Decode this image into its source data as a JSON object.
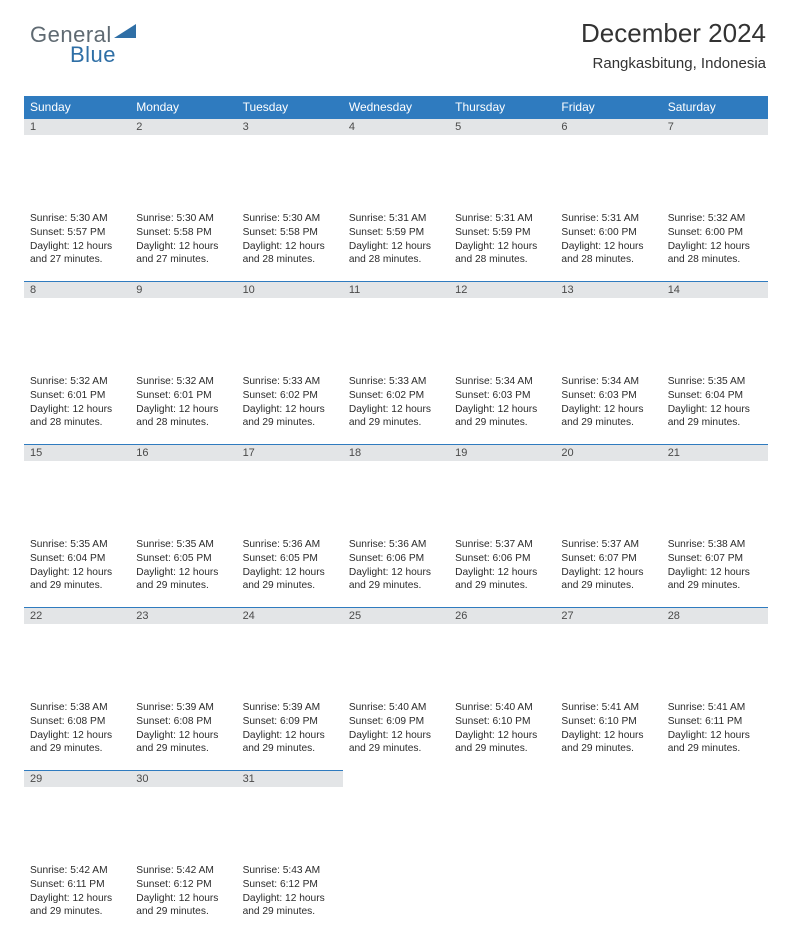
{
  "logo": {
    "text1": "General",
    "text2": "Blue"
  },
  "title": "December 2024",
  "location": "Rangkasbitung, Indonesia",
  "colors": {
    "header_bg": "#2f7bbf",
    "header_text": "#ffffff",
    "daynum_bg": "#e3e5e7",
    "row_border": "#2f7bbf",
    "logo_gray": "#5f6a72",
    "logo_blue": "#2f6fa6"
  },
  "weekdays": [
    "Sunday",
    "Monday",
    "Tuesday",
    "Wednesday",
    "Thursday",
    "Friday",
    "Saturday"
  ],
  "weeks": [
    [
      {
        "n": "1",
        "sr": "Sunrise: 5:30 AM",
        "ss": "Sunset: 5:57 PM",
        "d1": "Daylight: 12 hours",
        "d2": "and 27 minutes."
      },
      {
        "n": "2",
        "sr": "Sunrise: 5:30 AM",
        "ss": "Sunset: 5:58 PM",
        "d1": "Daylight: 12 hours",
        "d2": "and 27 minutes."
      },
      {
        "n": "3",
        "sr": "Sunrise: 5:30 AM",
        "ss": "Sunset: 5:58 PM",
        "d1": "Daylight: 12 hours",
        "d2": "and 28 minutes."
      },
      {
        "n": "4",
        "sr": "Sunrise: 5:31 AM",
        "ss": "Sunset: 5:59 PM",
        "d1": "Daylight: 12 hours",
        "d2": "and 28 minutes."
      },
      {
        "n": "5",
        "sr": "Sunrise: 5:31 AM",
        "ss": "Sunset: 5:59 PM",
        "d1": "Daylight: 12 hours",
        "d2": "and 28 minutes."
      },
      {
        "n": "6",
        "sr": "Sunrise: 5:31 AM",
        "ss": "Sunset: 6:00 PM",
        "d1": "Daylight: 12 hours",
        "d2": "and 28 minutes."
      },
      {
        "n": "7",
        "sr": "Sunrise: 5:32 AM",
        "ss": "Sunset: 6:00 PM",
        "d1": "Daylight: 12 hours",
        "d2": "and 28 minutes."
      }
    ],
    [
      {
        "n": "8",
        "sr": "Sunrise: 5:32 AM",
        "ss": "Sunset: 6:01 PM",
        "d1": "Daylight: 12 hours",
        "d2": "and 28 minutes."
      },
      {
        "n": "9",
        "sr": "Sunrise: 5:32 AM",
        "ss": "Sunset: 6:01 PM",
        "d1": "Daylight: 12 hours",
        "d2": "and 28 minutes."
      },
      {
        "n": "10",
        "sr": "Sunrise: 5:33 AM",
        "ss": "Sunset: 6:02 PM",
        "d1": "Daylight: 12 hours",
        "d2": "and 29 minutes."
      },
      {
        "n": "11",
        "sr": "Sunrise: 5:33 AM",
        "ss": "Sunset: 6:02 PM",
        "d1": "Daylight: 12 hours",
        "d2": "and 29 minutes."
      },
      {
        "n": "12",
        "sr": "Sunrise: 5:34 AM",
        "ss": "Sunset: 6:03 PM",
        "d1": "Daylight: 12 hours",
        "d2": "and 29 minutes."
      },
      {
        "n": "13",
        "sr": "Sunrise: 5:34 AM",
        "ss": "Sunset: 6:03 PM",
        "d1": "Daylight: 12 hours",
        "d2": "and 29 minutes."
      },
      {
        "n": "14",
        "sr": "Sunrise: 5:35 AM",
        "ss": "Sunset: 6:04 PM",
        "d1": "Daylight: 12 hours",
        "d2": "and 29 minutes."
      }
    ],
    [
      {
        "n": "15",
        "sr": "Sunrise: 5:35 AM",
        "ss": "Sunset: 6:04 PM",
        "d1": "Daylight: 12 hours",
        "d2": "and 29 minutes."
      },
      {
        "n": "16",
        "sr": "Sunrise: 5:35 AM",
        "ss": "Sunset: 6:05 PM",
        "d1": "Daylight: 12 hours",
        "d2": "and 29 minutes."
      },
      {
        "n": "17",
        "sr": "Sunrise: 5:36 AM",
        "ss": "Sunset: 6:05 PM",
        "d1": "Daylight: 12 hours",
        "d2": "and 29 minutes."
      },
      {
        "n": "18",
        "sr": "Sunrise: 5:36 AM",
        "ss": "Sunset: 6:06 PM",
        "d1": "Daylight: 12 hours",
        "d2": "and 29 minutes."
      },
      {
        "n": "19",
        "sr": "Sunrise: 5:37 AM",
        "ss": "Sunset: 6:06 PM",
        "d1": "Daylight: 12 hours",
        "d2": "and 29 minutes."
      },
      {
        "n": "20",
        "sr": "Sunrise: 5:37 AM",
        "ss": "Sunset: 6:07 PM",
        "d1": "Daylight: 12 hours",
        "d2": "and 29 minutes."
      },
      {
        "n": "21",
        "sr": "Sunrise: 5:38 AM",
        "ss": "Sunset: 6:07 PM",
        "d1": "Daylight: 12 hours",
        "d2": "and 29 minutes."
      }
    ],
    [
      {
        "n": "22",
        "sr": "Sunrise: 5:38 AM",
        "ss": "Sunset: 6:08 PM",
        "d1": "Daylight: 12 hours",
        "d2": "and 29 minutes."
      },
      {
        "n": "23",
        "sr": "Sunrise: 5:39 AM",
        "ss": "Sunset: 6:08 PM",
        "d1": "Daylight: 12 hours",
        "d2": "and 29 minutes."
      },
      {
        "n": "24",
        "sr": "Sunrise: 5:39 AM",
        "ss": "Sunset: 6:09 PM",
        "d1": "Daylight: 12 hours",
        "d2": "and 29 minutes."
      },
      {
        "n": "25",
        "sr": "Sunrise: 5:40 AM",
        "ss": "Sunset: 6:09 PM",
        "d1": "Daylight: 12 hours",
        "d2": "and 29 minutes."
      },
      {
        "n": "26",
        "sr": "Sunrise: 5:40 AM",
        "ss": "Sunset: 6:10 PM",
        "d1": "Daylight: 12 hours",
        "d2": "and 29 minutes."
      },
      {
        "n": "27",
        "sr": "Sunrise: 5:41 AM",
        "ss": "Sunset: 6:10 PM",
        "d1": "Daylight: 12 hours",
        "d2": "and 29 minutes."
      },
      {
        "n": "28",
        "sr": "Sunrise: 5:41 AM",
        "ss": "Sunset: 6:11 PM",
        "d1": "Daylight: 12 hours",
        "d2": "and 29 minutes."
      }
    ],
    [
      {
        "n": "29",
        "sr": "Sunrise: 5:42 AM",
        "ss": "Sunset: 6:11 PM",
        "d1": "Daylight: 12 hours",
        "d2": "and 29 minutes."
      },
      {
        "n": "30",
        "sr": "Sunrise: 5:42 AM",
        "ss": "Sunset: 6:12 PM",
        "d1": "Daylight: 12 hours",
        "d2": "and 29 minutes."
      },
      {
        "n": "31",
        "sr": "Sunrise: 5:43 AM",
        "ss": "Sunset: 6:12 PM",
        "d1": "Daylight: 12 hours",
        "d2": "and 29 minutes."
      },
      null,
      null,
      null,
      null
    ]
  ]
}
